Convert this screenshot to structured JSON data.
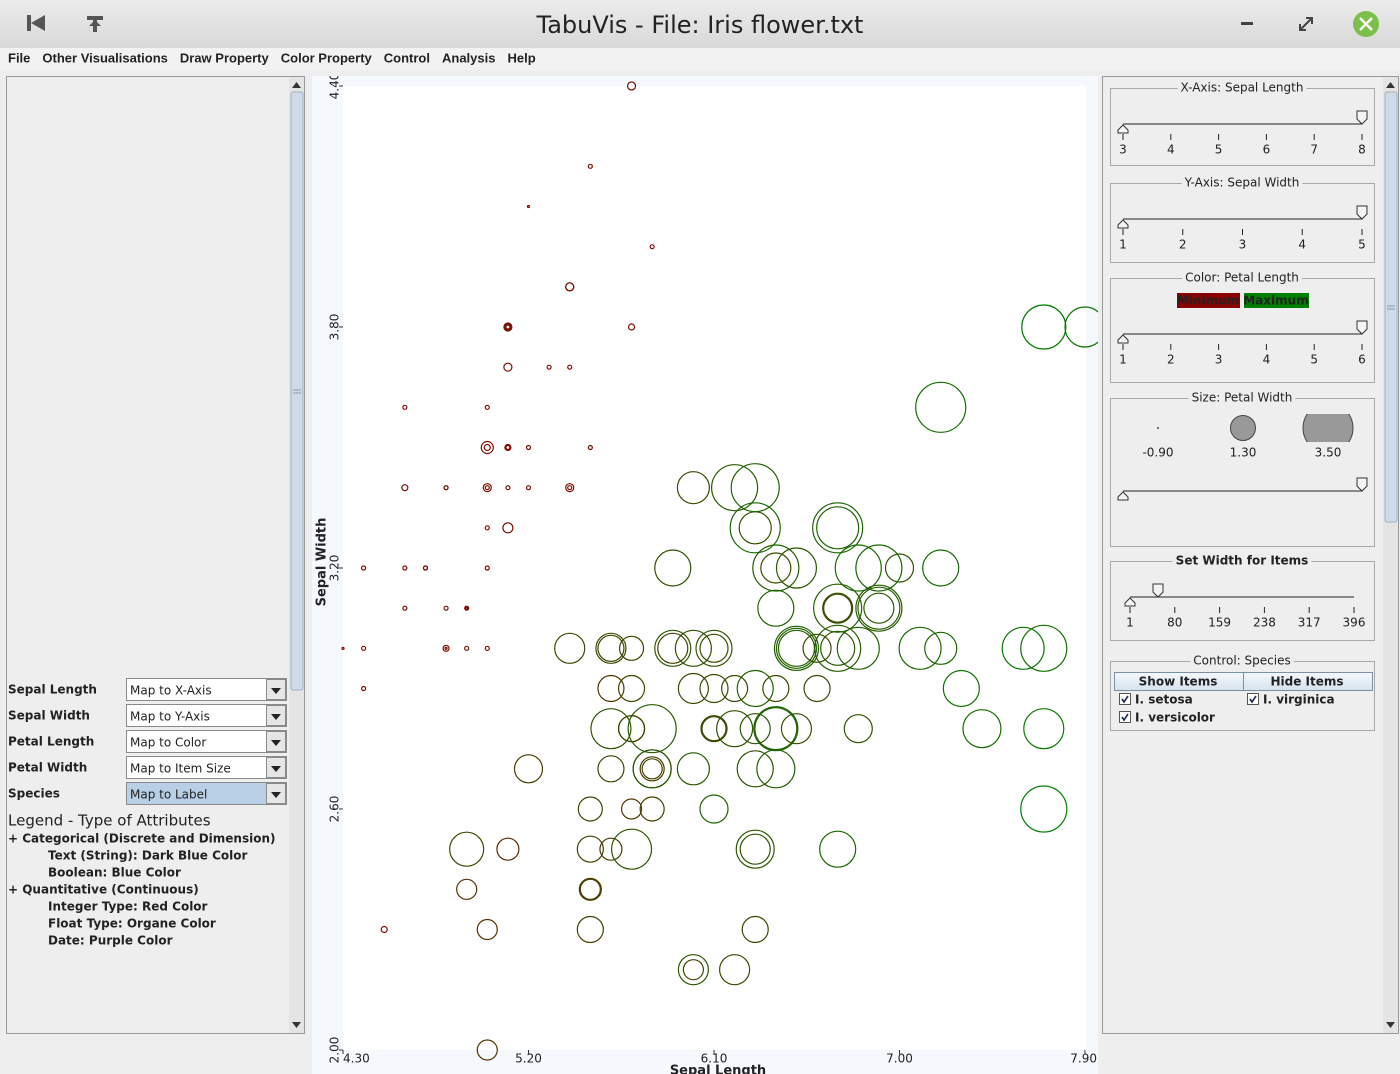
{
  "window": {
    "title": "TabuVis - File: Iris flower.txt"
  },
  "menu": [
    "File",
    "Other Visualisations",
    "Draw Property",
    "Color Property",
    "Control",
    "Analysis",
    "Help"
  ],
  "attributes": [
    {
      "name": "Sepal Length",
      "mapping": "Map to X-Axis",
      "color": "#e8804a"
    },
    {
      "name": "Sepal Width",
      "mapping": "Map to Y-Axis",
      "color": "#e8804a"
    },
    {
      "name": "Petal Length",
      "mapping": "Map to Color",
      "color": "#e8804a"
    },
    {
      "name": "Petal Width",
      "mapping": "Map to Item Size",
      "color": "#e8804a"
    },
    {
      "name": "Species",
      "mapping": "Map to Label",
      "color": "#1a2a5a"
    }
  ],
  "legend": {
    "title": "Legend - Type of Attributes",
    "groups": [
      {
        "heading": "+ Categorical (Discrete and Dimension)",
        "items": [
          {
            "text": "Text (String): Dark Blue Color",
            "color": "#1a2a5a"
          },
          {
            "text": "Boolean: Blue Color",
            "color": "#3a7fc0"
          }
        ]
      },
      {
        "heading": "+ Quantitative (Continuous)",
        "items": [
          {
            "text": "Integer Type: Red Color",
            "color": "#cc1111"
          },
          {
            "text": "Float Type: Organe Color",
            "color": "#e8804a"
          },
          {
            "text": "Date: Purple Color",
            "color": "#7a5a6a"
          }
        ]
      }
    ]
  },
  "chart_data": {
    "type": "scatter",
    "x_label": "Sepal Length",
    "y_label": "Sepal Width",
    "x": [
      5.1,
      4.9,
      4.7,
      4.6,
      5.0,
      5.4,
      4.6,
      5.0,
      4.4,
      4.9,
      5.4,
      4.8,
      4.8,
      4.3,
      5.8,
      5.7,
      5.4,
      5.1,
      5.7,
      5.1,
      5.4,
      5.1,
      4.6,
      5.1,
      4.8,
      5.0,
      5.0,
      5.2,
      5.2,
      4.7,
      4.8,
      5.4,
      5.2,
      5.5,
      4.9,
      5.0,
      5.5,
      4.9,
      4.4,
      5.1,
      5.0,
      4.5,
      4.4,
      5.0,
      5.1,
      4.8,
      5.1,
      4.6,
      5.3,
      5.0,
      7.0,
      6.4,
      6.9,
      5.5,
      6.5,
      5.7,
      6.3,
      4.9,
      6.6,
      5.2,
      5.0,
      5.9,
      6.0,
      6.1,
      5.6,
      6.7,
      5.6,
      5.8,
      6.2,
      5.6,
      5.9,
      6.1,
      6.3,
      6.1,
      6.4,
      6.6,
      6.8,
      6.7,
      6.0,
      5.7,
      5.5,
      5.5,
      5.8,
      6.0,
      5.4,
      6.0,
      6.7,
      6.3,
      5.6,
      5.5,
      5.5,
      6.1,
      5.8,
      5.0,
      5.6,
      5.7,
      5.7,
      6.2,
      5.1,
      5.7,
      6.3,
      5.8,
      7.1,
      6.3,
      6.5,
      7.6,
      4.9,
      7.3,
      6.7,
      7.2,
      6.5,
      6.4,
      6.8,
      5.7,
      5.8,
      6.4,
      6.5,
      7.7,
      7.7,
      6.0,
      6.9,
      5.6,
      7.7,
      6.3,
      6.7,
      7.2,
      6.2,
      6.1,
      6.4,
      7.2,
      7.4,
      7.9,
      6.4,
      6.3,
      6.1,
      7.7,
      6.3,
      6.4,
      6.0,
      6.9,
      6.7,
      6.9,
      5.8,
      6.8,
      6.7,
      6.7,
      6.3,
      6.5,
      6.2,
      5.9
    ],
    "values": [
      3.5,
      3.0,
      3.2,
      3.1,
      3.6,
      3.9,
      3.4,
      3.4,
      2.9,
      3.1,
      3.7,
      3.4,
      3.0,
      3.0,
      4.0,
      4.4,
      3.9,
      3.5,
      3.8,
      3.8,
      3.4,
      3.7,
      3.6,
      3.3,
      3.4,
      3.0,
      3.4,
      3.5,
      3.4,
      3.2,
      3.1,
      3.4,
      4.1,
      4.2,
      3.1,
      3.2,
      3.5,
      3.1,
      3.0,
      3.4,
      3.5,
      2.3,
      3.2,
      3.5,
      3.8,
      3.0,
      3.8,
      3.2,
      3.7,
      3.3,
      3.2,
      3.2,
      3.1,
      2.3,
      2.8,
      2.8,
      3.3,
      2.4,
      2.9,
      2.7,
      2.0,
      3.0,
      2.2,
      2.9,
      2.9,
      3.1,
      3.0,
      2.7,
      2.2,
      2.5,
      3.2,
      2.8,
      2.5,
      2.8,
      2.9,
      3.0,
      2.8,
      3.0,
      2.9,
      2.6,
      2.4,
      2.4,
      2.7,
      2.7,
      3.0,
      3.4,
      3.1,
      2.3,
      3.0,
      2.5,
      2.6,
      3.0,
      2.6,
      2.3,
      2.7,
      3.0,
      2.9,
      2.9,
      2.5,
      2.8,
      3.3,
      2.7,
      3.0,
      2.9,
      3.0,
      3.0,
      2.5,
      2.9,
      2.5,
      3.6,
      3.2,
      2.7,
      3.0,
      2.5,
      2.8,
      3.2,
      3.0,
      3.8,
      2.6,
      2.2,
      3.2,
      2.8,
      2.8,
      2.7,
      3.3,
      3.2,
      2.8,
      3.0,
      2.8,
      3.0,
      2.8,
      3.8,
      2.8,
      2.8,
      2.6,
      3.0,
      3.4,
      3.1,
      3.0,
      3.1,
      3.1,
      3.1,
      2.7,
      3.2,
      3.3,
      3.0,
      2.5,
      3.0,
      3.4,
      3.0
    ],
    "sizes": [
      0.2,
      0.2,
      0.2,
      0.2,
      0.2,
      0.4,
      0.3,
      0.2,
      0.2,
      0.1,
      0.2,
      0.2,
      0.1,
      0.1,
      0.2,
      0.4,
      0.4,
      0.3,
      0.3,
      0.3,
      0.2,
      0.4,
      0.2,
      0.5,
      0.2,
      0.2,
      0.4,
      0.2,
      0.2,
      0.2,
      0.2,
      0.4,
      0.1,
      0.2,
      0.2,
      0.2,
      0.2,
      0.1,
      0.2,
      0.2,
      0.3,
      0.3,
      0.2,
      0.6,
      0.4,
      0.3,
      0.2,
      0.2,
      0.2,
      0.2,
      1.4,
      1.5,
      1.5,
      1.3,
      1.5,
      1.3,
      1.6,
      1.0,
      1.3,
      1.4,
      1.0,
      1.5,
      1.0,
      1.4,
      1.3,
      1.4,
      1.5,
      1.0,
      1.5,
      1.1,
      1.8,
      1.3,
      1.5,
      1.2,
      1.3,
      1.4,
      1.4,
      1.7,
      1.5,
      1.0,
      1.1,
      1.0,
      1.2,
      1.6,
      1.5,
      1.6,
      1.5,
      1.3,
      1.3,
      1.3,
      1.2,
      1.4,
      1.2,
      1.0,
      1.3,
      1.2,
      1.3,
      1.3,
      1.1,
      1.3,
      2.5,
      1.9,
      2.1,
      1.8,
      2.2,
      2.1,
      1.7,
      1.8,
      1.8,
      2.5,
      2.0,
      1.9,
      2.1,
      2.0,
      2.4,
      2.3,
      1.8,
      2.2,
      2.3,
      1.5,
      2.3,
      2.0,
      2.0,
      1.8,
      2.1,
      1.8,
      1.8,
      1.8,
      2.1,
      1.6,
      1.9,
      2.0,
      2.2,
      1.5,
      1.4,
      2.3,
      2.4,
      1.8,
      1.8,
      2.1,
      2.4,
      2.3,
      1.9,
      2.3,
      2.5,
      2.3,
      1.9,
      2.0,
      2.3,
      1.8
    ],
    "color_values": [
      1.4,
      1.4,
      1.3,
      1.5,
      1.4,
      1.7,
      1.4,
      1.5,
      1.4,
      1.5,
      1.5,
      1.6,
      1.4,
      1.1,
      1.2,
      1.5,
      1.3,
      1.4,
      1.7,
      1.5,
      1.7,
      1.5,
      1.0,
      1.7,
      1.9,
      1.6,
      1.6,
      1.5,
      1.4,
      1.6,
      1.6,
      1.5,
      1.5,
      1.4,
      1.5,
      1.2,
      1.3,
      1.5,
      1.3,
      1.5,
      1.3,
      1.3,
      1.3,
      1.6,
      1.9,
      1.4,
      1.6,
      1.4,
      1.5,
      1.4,
      4.7,
      4.5,
      4.9,
      4.0,
      4.6,
      4.5,
      4.7,
      3.3,
      4.6,
      3.9,
      3.5,
      4.2,
      4.0,
      4.7,
      3.6,
      4.4,
      4.5,
      4.1,
      4.5,
      3.9,
      4.8,
      4.0,
      4.9,
      4.7,
      4.3,
      4.4,
      4.8,
      5.0,
      4.5,
      3.5,
      3.8,
      3.7,
      3.9,
      5.1,
      4.5,
      4.5,
      4.7,
      4.4,
      4.1,
      4.0,
      4.4,
      4.6,
      4.0,
      3.3,
      4.2,
      4.2,
      4.2,
      4.3,
      3.0,
      4.1,
      6.0,
      5.1,
      5.9,
      5.6,
      5.8,
      6.6,
      4.5,
      6.3,
      5.8,
      6.1,
      5.1,
      5.3,
      5.5,
      5.0,
      5.1,
      5.3,
      5.5,
      6.7,
      6.9,
      5.0,
      5.7,
      4.9,
      6.7,
      4.9,
      5.7,
      6.0,
      4.8,
      4.9,
      5.6,
      5.8,
      6.1,
      6.4,
      5.6,
      5.1,
      5.6,
      6.1,
      5.6,
      5.5,
      4.8,
      5.4,
      5.6,
      5.1,
      5.1,
      5.9,
      5.7,
      5.2,
      5.0,
      5.2,
      5.4,
      5.1
    ],
    "color_min": "#8b0000",
    "color_max": "#008000",
    "xlim": [
      4.3,
      7.9
    ],
    "ylim": [
      2.0,
      4.4
    ],
    "xticks": [
      {
        "value": 4.3,
        "label": "4.30"
      },
      {
        "value": 5.2,
        "label": "5.20"
      },
      {
        "value": 6.1,
        "label": "6.10"
      },
      {
        "value": 7.0,
        "label": "7.00"
      },
      {
        "value": 7.9,
        "label": "7.90"
      }
    ],
    "yticks": [
      {
        "value": 2.0,
        "label": "2.00"
      },
      {
        "value": 2.6,
        "label": "2.60"
      },
      {
        "value": 3.2,
        "label": "3.20"
      },
      {
        "value": 3.8,
        "label": "3.80"
      },
      {
        "value": 4.4,
        "label": "4.40"
      }
    ]
  },
  "controls": {
    "x_axis": {
      "title": "X-Axis: Sepal Length",
      "ticks": [
        3,
        4,
        5,
        6,
        7,
        8
      ]
    },
    "y_axis": {
      "title": "Y-Axis: Sepal Width",
      "ticks": [
        1,
        2,
        3,
        4,
        5
      ]
    },
    "color": {
      "title": "Color: Petal Length",
      "min_label": "Minimum",
      "max_label": "Maximum",
      "ticks": [
        1,
        2,
        3,
        4,
        5,
        6
      ]
    },
    "size": {
      "title": "Size: Petal Width",
      "ticks": [
        {
          "value": -0.9,
          "label": "-0.90"
        },
        {
          "value": 1.3,
          "label": "1.30"
        },
        {
          "value": 3.5,
          "label": "3.50"
        }
      ]
    },
    "width": {
      "title": "Set Width for Items",
      "ticks": [
        1,
        80,
        159,
        238,
        317,
        396
      ]
    },
    "species": {
      "title": "Control: Species",
      "buttons": [
        "Show Items",
        "Hide Items"
      ],
      "items": [
        "I. setosa",
        "I. virginica",
        "I. versicolor"
      ]
    }
  }
}
